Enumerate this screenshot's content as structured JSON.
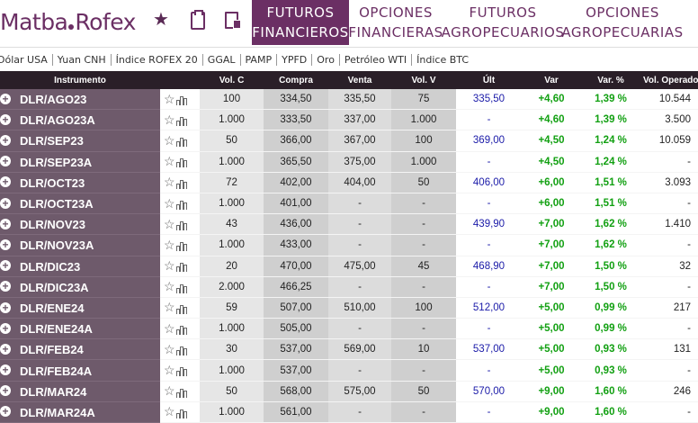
{
  "header": {
    "logo_left": "Matba",
    "logo_right": "Rofex",
    "icons": [
      "star-icon",
      "clipboard-icon",
      "calculator-icon"
    ],
    "tabs": [
      {
        "line1": "FUTUROS",
        "line2": "FINANCIEROS",
        "active": true
      },
      {
        "line1": "OPCIONES",
        "line2": "FINANCIERAS",
        "active": false
      },
      {
        "line1": "FUTUROS",
        "line2": "AGROPECUARIOS",
        "active": false
      },
      {
        "line1": "OPCIONES",
        "line2": "AGROPECUARIAS",
        "active": false
      }
    ]
  },
  "subbar": [
    "Dólar USA",
    "Yuan CNH",
    "Índice ROFEX 20",
    "GGAL",
    "PAMP",
    "YPFD",
    "Oro",
    "Petróleo WTI",
    "Índice BTC"
  ],
  "table": {
    "columns": [
      "Instrumento",
      "",
      "Vol. C",
      "Compra",
      "Venta",
      "Vol. V",
      "Últ",
      "Var",
      "Var. %",
      "Vol. Operado"
    ],
    "rows": [
      {
        "inst": "DLR/AGO23",
        "volc": "100",
        "compra": "334,50",
        "venta": "335,50",
        "volv": "75",
        "ult": "335,50",
        "var": "+4,60",
        "varp": "1,39 %",
        "volop": "10.544"
      },
      {
        "inst": "DLR/AGO23A",
        "volc": "1.000",
        "compra": "333,50",
        "venta": "337,00",
        "volv": "1.000",
        "ult": "-",
        "var": "+4,60",
        "varp": "1,39 %",
        "volop": "3.500"
      },
      {
        "inst": "DLR/SEP23",
        "volc": "50",
        "compra": "366,00",
        "venta": "367,00",
        "volv": "100",
        "ult": "369,00",
        "var": "+4,50",
        "varp": "1,24 %",
        "volop": "10.059"
      },
      {
        "inst": "DLR/SEP23A",
        "volc": "1.000",
        "compra": "365,50",
        "venta": "375,00",
        "volv": "1.000",
        "ult": "-",
        "var": "+4,50",
        "varp": "1,24 %",
        "volop": "-"
      },
      {
        "inst": "DLR/OCT23",
        "volc": "72",
        "compra": "402,00",
        "venta": "404,00",
        "volv": "50",
        "ult": "406,00",
        "var": "+6,00",
        "varp": "1,51 %",
        "volop": "3.093"
      },
      {
        "inst": "DLR/OCT23A",
        "volc": "1.000",
        "compra": "401,00",
        "venta": "-",
        "volv": "-",
        "ult": "-",
        "var": "+6,00",
        "varp": "1,51 %",
        "volop": "-"
      },
      {
        "inst": "DLR/NOV23",
        "volc": "43",
        "compra": "436,00",
        "venta": "-",
        "volv": "-",
        "ult": "439,90",
        "var": "+7,00",
        "varp": "1,62 %",
        "volop": "1.410"
      },
      {
        "inst": "DLR/NOV23A",
        "volc": "1.000",
        "compra": "433,00",
        "venta": "-",
        "volv": "-",
        "ult": "-",
        "var": "+7,00",
        "varp": "1,62 %",
        "volop": "-"
      },
      {
        "inst": "DLR/DIC23",
        "volc": "20",
        "compra": "470,00",
        "venta": "475,00",
        "volv": "45",
        "ult": "468,90",
        "var": "+7,00",
        "varp": "1,50 %",
        "volop": "32"
      },
      {
        "inst": "DLR/DIC23A",
        "volc": "2.000",
        "compra": "466,25",
        "venta": "-",
        "volv": "-",
        "ult": "-",
        "var": "+7,00",
        "varp": "1,50 %",
        "volop": "-"
      },
      {
        "inst": "DLR/ENE24",
        "volc": "59",
        "compra": "507,00",
        "venta": "510,00",
        "volv": "100",
        "ult": "512,00",
        "var": "+5,00",
        "varp": "0,99 %",
        "volop": "217"
      },
      {
        "inst": "DLR/ENE24A",
        "volc": "1.000",
        "compra": "505,00",
        "venta": "-",
        "volv": "-",
        "ult": "-",
        "var": "+5,00",
        "varp": "0,99 %",
        "volop": "-"
      },
      {
        "inst": "DLR/FEB24",
        "volc": "30",
        "compra": "537,00",
        "venta": "569,00",
        "volv": "10",
        "ult": "537,00",
        "var": "+5,00",
        "varp": "0,93 %",
        "volop": "131"
      },
      {
        "inst": "DLR/FEB24A",
        "volc": "1.000",
        "compra": "537,00",
        "venta": "-",
        "volv": "-",
        "ult": "-",
        "var": "+5,00",
        "varp": "0,93 %",
        "volop": "-"
      },
      {
        "inst": "DLR/MAR24",
        "volc": "50",
        "compra": "568,00",
        "venta": "575,00",
        "volv": "50",
        "ult": "570,00",
        "var": "+9,00",
        "varp": "1,60 %",
        "volop": "246"
      },
      {
        "inst": "DLR/MAR24A",
        "volc": "1.000",
        "compra": "561,00",
        "venta": "-",
        "volv": "-",
        "ult": "-",
        "var": "+9,00",
        "varp": "1,60 %",
        "volop": "-"
      }
    ]
  },
  "colors": {
    "brand": "#6b2f64",
    "instrument_bg": "#6e5a6b",
    "header_bg": "#2a1f28",
    "ult": "#1a1aa8",
    "positive": "#12a012"
  }
}
